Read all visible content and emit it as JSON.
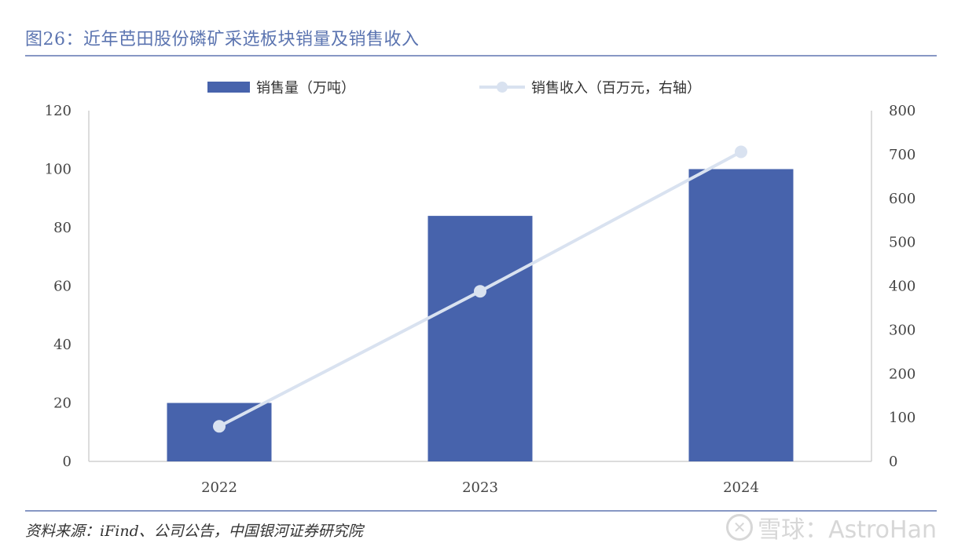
{
  "figure": {
    "title": "图26：近年芭田股份磷矿采选板块销量及销售收入",
    "source": "资料来源：iFind、公司公告，中国银河证券研究院",
    "watermark": "雪球：AstroHan"
  },
  "chart_data": {
    "type": "bar",
    "categories": [
      "2022",
      "2023",
      "2024"
    ],
    "series": [
      {
        "name": "销售量（万吨）",
        "type": "bar",
        "axis": "left",
        "color": "#4763ac",
        "values": [
          20,
          84,
          100
        ]
      },
      {
        "name": "销售收入（百万元，右轴）",
        "type": "line",
        "axis": "right",
        "color": "#d9e2f0",
        "values": [
          80,
          388,
          706
        ]
      }
    ],
    "y_left": {
      "lim": [
        0,
        120
      ],
      "ticks": [
        0,
        20,
        40,
        60,
        80,
        100,
        120
      ]
    },
    "y_right": {
      "lim": [
        0,
        800
      ],
      "ticks": [
        0,
        100,
        200,
        300,
        400,
        500,
        600,
        700,
        800
      ]
    },
    "legend": "top-center",
    "grid": false
  }
}
